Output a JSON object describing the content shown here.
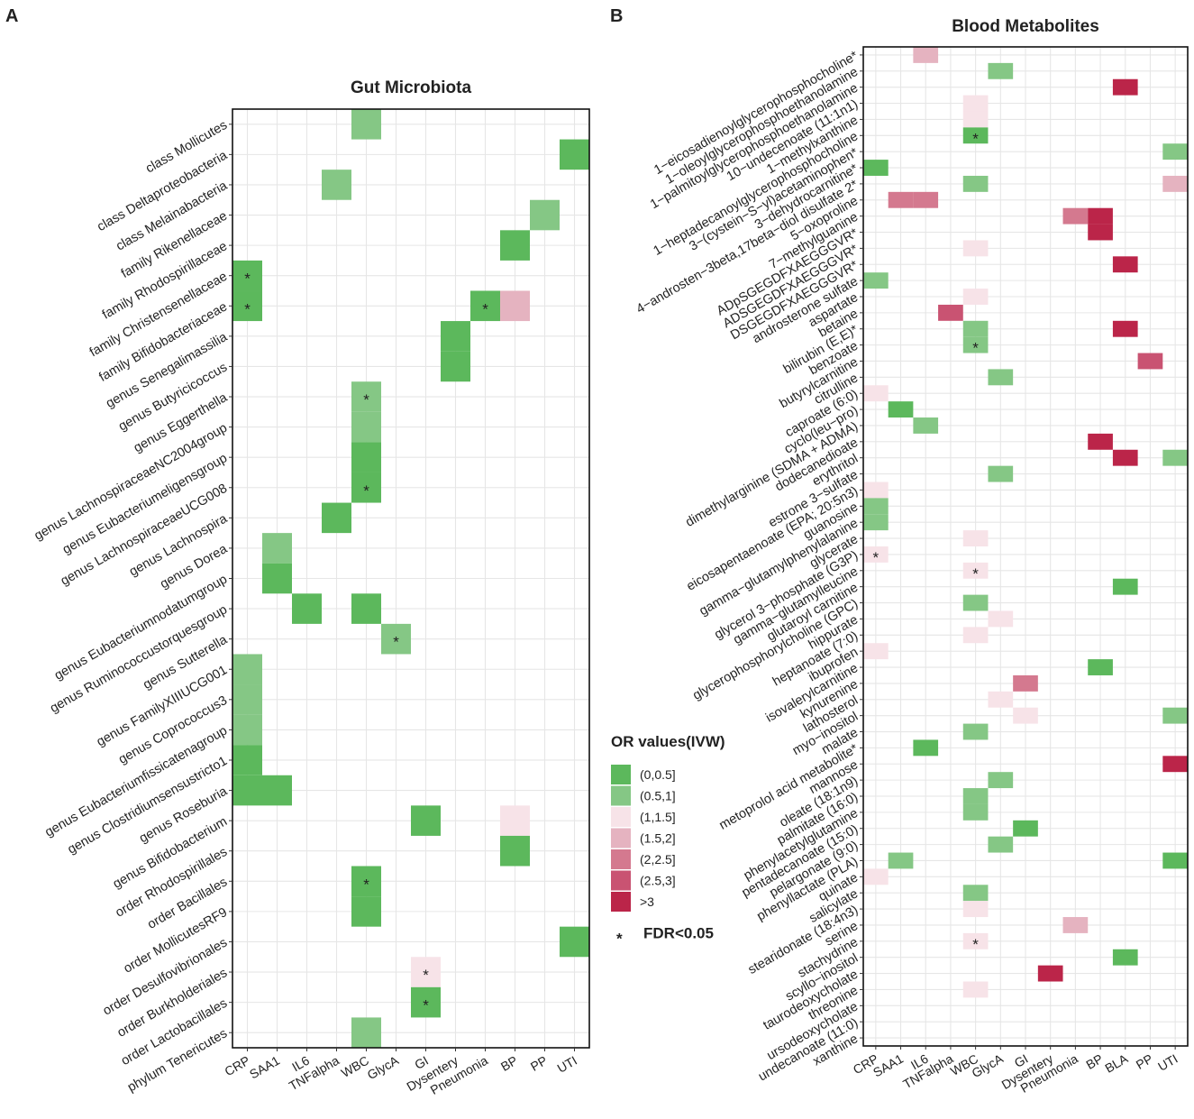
{
  "legend": {
    "title": "OR values(IVW)",
    "note": "FDR<0.05",
    "star": "*",
    "bins": [
      {
        "label": "(0,0.5]",
        "color": "#5cb85c"
      },
      {
        "label": "(0.5,1]",
        "color": "#85c785"
      },
      {
        "label": "(1,1.5]",
        "color": "#f7e3e8"
      },
      {
        "label": "(1.5,2]",
        "color": "#e5b3c0"
      },
      {
        "label": "(2,2.5]",
        "color": "#d4798f"
      },
      {
        "label": "(2.5,3]",
        "color": "#c95372"
      },
      {
        "label": ">3",
        "color": "#bb2549"
      }
    ]
  },
  "chart_data": [
    {
      "type": "heatmap",
      "panel": "A",
      "title": "Gut Microbiota",
      "columns": [
        "CRP",
        "SAA1",
        "IL6",
        "TNFalpha",
        "WBC",
        "GlycA",
        "GI",
        "Dysentery",
        "Pneumonia",
        "BP",
        "PP",
        "UTI"
      ],
      "rows": [
        "class Mollicutes",
        "class Deltaproteobacteria",
        "class Melainabacteria",
        "family Rikenellaceae",
        "family Rhodospirillaceae",
        "family Christensenellaceae",
        "family Bifidobacteriaceae",
        "genus Senegalimassilia",
        "genus Butyricicoccus",
        "genus Eggerthella",
        "genus LachnospiraceaeNC2004group",
        "genus Eubacteriumeligensgroup",
        "genus LachnospiraceaeUCG008",
        "genus Lachnospira",
        "genus Dorea",
        "genus Eubacteriumnodatumgroup",
        "genus Ruminococcustorquesgroup",
        "genus Sutterella",
        "genus FamilyXIIIUCG001",
        "genus Coprococcus3",
        "genus Eubacteriumfissicatenagroup",
        "genus Clostridiumsensustricto1",
        "genus Roseburia",
        "genus Bifidobacterium",
        "order Rhodospirillales",
        "order Bacillales",
        "order MollicutesRF9",
        "order Desulfovibrionales",
        "order Burkholderiales",
        "order Lactobacillales",
        "phylum Tenericutes"
      ],
      "cells": [
        {
          "row": 0,
          "col": 4,
          "bin": 1,
          "sig": false
        },
        {
          "row": 1,
          "col": 11,
          "bin": 0,
          "sig": false
        },
        {
          "row": 2,
          "col": 3,
          "bin": 1,
          "sig": false
        },
        {
          "row": 3,
          "col": 10,
          "bin": 1,
          "sig": false
        },
        {
          "row": 4,
          "col": 9,
          "bin": 0,
          "sig": false
        },
        {
          "row": 5,
          "col": 0,
          "bin": 0,
          "sig": true
        },
        {
          "row": 6,
          "col": 0,
          "bin": 0,
          "sig": true
        },
        {
          "row": 6,
          "col": 8,
          "bin": 0,
          "sig": true
        },
        {
          "row": 6,
          "col": 9,
          "bin": 3,
          "sig": false
        },
        {
          "row": 7,
          "col": 7,
          "bin": 0,
          "sig": false
        },
        {
          "row": 8,
          "col": 7,
          "bin": 0,
          "sig": false
        },
        {
          "row": 9,
          "col": 4,
          "bin": 1,
          "sig": true
        },
        {
          "row": 10,
          "col": 4,
          "bin": 1,
          "sig": false
        },
        {
          "row": 11,
          "col": 4,
          "bin": 0,
          "sig": false
        },
        {
          "row": 12,
          "col": 4,
          "bin": 0,
          "sig": true
        },
        {
          "row": 13,
          "col": 3,
          "bin": 0,
          "sig": false
        },
        {
          "row": 14,
          "col": 1,
          "bin": 1,
          "sig": false
        },
        {
          "row": 15,
          "col": 1,
          "bin": 0,
          "sig": false
        },
        {
          "row": 16,
          "col": 2,
          "bin": 0,
          "sig": false
        },
        {
          "row": 16,
          "col": 4,
          "bin": 0,
          "sig": false
        },
        {
          "row": 17,
          "col": 5,
          "bin": 1,
          "sig": true
        },
        {
          "row": 18,
          "col": 0,
          "bin": 1,
          "sig": false
        },
        {
          "row": 19,
          "col": 0,
          "bin": 1,
          "sig": false
        },
        {
          "row": 20,
          "col": 0,
          "bin": 1,
          "sig": false
        },
        {
          "row": 21,
          "col": 0,
          "bin": 0,
          "sig": false
        },
        {
          "row": 22,
          "col": 0,
          "bin": 0,
          "sig": false
        },
        {
          "row": 22,
          "col": 1,
          "bin": 0,
          "sig": false
        },
        {
          "row": 23,
          "col": 6,
          "bin": 0,
          "sig": false
        },
        {
          "row": 23,
          "col": 9,
          "bin": 2,
          "sig": false
        },
        {
          "row": 24,
          "col": 9,
          "bin": 0,
          "sig": false
        },
        {
          "row": 25,
          "col": 4,
          "bin": 0,
          "sig": true
        },
        {
          "row": 26,
          "col": 4,
          "bin": 0,
          "sig": false
        },
        {
          "row": 27,
          "col": 11,
          "bin": 0,
          "sig": false
        },
        {
          "row": 28,
          "col": 6,
          "bin": 2,
          "sig": true
        },
        {
          "row": 29,
          "col": 6,
          "bin": 0,
          "sig": true
        },
        {
          "row": 30,
          "col": 4,
          "bin": 1,
          "sig": false
        }
      ]
    },
    {
      "type": "heatmap",
      "panel": "B",
      "title": "Blood Metabolites",
      "columns": [
        "CRP",
        "SAA1",
        "IL6",
        "TNFalpha",
        "WBC",
        "GlycA",
        "GI",
        "Dysentery",
        "Pneumonia",
        "BP",
        "BLA",
        "PP",
        "UTI"
      ],
      "rows": [
        "1−eicosadienoylglycerophosphocholine*",
        "1−oleoylglycerophosphoethanolamine",
        "1−palmitoylglycerophosphoethanolamine",
        "10−undecenoate (11:1n1)",
        "1−methylxanthine",
        "1−heptadecanoylglycerophosphocholine",
        "3−(cystein−S−yl)acetaminophen*",
        "3−dehydrocarnitine*",
        "4−androsten−3beta,17beta−diol disulfate 2*",
        "5−oxoproline",
        "7−methylguanine",
        "ADpSGEGDFXAEGGGVR*",
        "ADSGEGDFXAEGGGVR*",
        "DSGEGDFXAEGGGVR*",
        "androsterone sulfate",
        "aspartate",
        "betaine",
        "bilirubin (E,E)*",
        "benzoate",
        "butyrylcarnitine",
        "citrulline",
        "caproate (6:0)",
        "cyclo(leu−pro)",
        "dimethylarginine (SDMA + ADMA)",
        "dodecanedioate",
        "erythritol",
        "estrone 3−sulfate",
        "eicosapentaenoate (EPA; 20:5n3)",
        "guanosine",
        "gamma−glutamylphenylalanine",
        "glycerate",
        "glycerol 3−phosphate (G3P)",
        "gamma−glutamylleucine",
        "glutaroyl carnitine",
        "glycerophosphorylcholine (GPC)",
        "hippurate",
        "heptanoate (7:0)",
        "ibuprofen",
        "isovalerylcarnitine",
        "kynurenine",
        "lathosterol",
        "myo−inositol",
        "malate",
        "metoprolol acid metabolite*",
        "mannose",
        "oleate (18:1n9)",
        "palmitate (16:0)",
        "phenylacetylglutamine",
        "pentadecanoate (15:0)",
        "pelargonate (9:0)",
        "phenyllactate (PLA)",
        "quinate",
        "salicylate",
        "stearidonate (18:4n3)",
        "serine",
        "stachydrine",
        "scyllo−inositol",
        "taurodeoxycholate",
        "threonine",
        "ursodeoxycholate",
        "undecanoate (11:0)",
        "xanthine"
      ],
      "cells": [
        {
          "row": 0,
          "col": 2,
          "bin": 3,
          "sig": false
        },
        {
          "row": 1,
          "col": 5,
          "bin": 1,
          "sig": false
        },
        {
          "row": 2,
          "col": 10,
          "bin": 6,
          "sig": false
        },
        {
          "row": 3,
          "col": 4,
          "bin": 2,
          "sig": false
        },
        {
          "row": 4,
          "col": 4,
          "bin": 2,
          "sig": false
        },
        {
          "row": 5,
          "col": 4,
          "bin": 0,
          "sig": true
        },
        {
          "row": 6,
          "col": 12,
          "bin": 1,
          "sig": false
        },
        {
          "row": 7,
          "col": 0,
          "bin": 0,
          "sig": false
        },
        {
          "row": 8,
          "col": 4,
          "bin": 1,
          "sig": false
        },
        {
          "row": 8,
          "col": 12,
          "bin": 3,
          "sig": false
        },
        {
          "row": 9,
          "col": 1,
          "bin": 4,
          "sig": false
        },
        {
          "row": 9,
          "col": 2,
          "bin": 4,
          "sig": false
        },
        {
          "row": 10,
          "col": 8,
          "bin": 4,
          "sig": false
        },
        {
          "row": 10,
          "col": 9,
          "bin": 6,
          "sig": false
        },
        {
          "row": 11,
          "col": 9,
          "bin": 6,
          "sig": false
        },
        {
          "row": 12,
          "col": 4,
          "bin": 2,
          "sig": false
        },
        {
          "row": 13,
          "col": 10,
          "bin": 6,
          "sig": false
        },
        {
          "row": 14,
          "col": 0,
          "bin": 1,
          "sig": false
        },
        {
          "row": 15,
          "col": 4,
          "bin": 2,
          "sig": false
        },
        {
          "row": 16,
          "col": 3,
          "bin": 5,
          "sig": false
        },
        {
          "row": 17,
          "col": 4,
          "bin": 1,
          "sig": false
        },
        {
          "row": 17,
          "col": 10,
          "bin": 6,
          "sig": false
        },
        {
          "row": 18,
          "col": 4,
          "bin": 1,
          "sig": true
        },
        {
          "row": 19,
          "col": 11,
          "bin": 5,
          "sig": false
        },
        {
          "row": 20,
          "col": 5,
          "bin": 1,
          "sig": false
        },
        {
          "row": 21,
          "col": 0,
          "bin": 2,
          "sig": false
        },
        {
          "row": 22,
          "col": 1,
          "bin": 0,
          "sig": false
        },
        {
          "row": 23,
          "col": 2,
          "bin": 1,
          "sig": false
        },
        {
          "row": 24,
          "col": 9,
          "bin": 6,
          "sig": false
        },
        {
          "row": 25,
          "col": 10,
          "bin": 6,
          "sig": false
        },
        {
          "row": 25,
          "col": 12,
          "bin": 1,
          "sig": false
        },
        {
          "row": 26,
          "col": 5,
          "bin": 1,
          "sig": false
        },
        {
          "row": 27,
          "col": 0,
          "bin": 2,
          "sig": false
        },
        {
          "row": 28,
          "col": 0,
          "bin": 1,
          "sig": false
        },
        {
          "row": 29,
          "col": 0,
          "bin": 1,
          "sig": false
        },
        {
          "row": 30,
          "col": 4,
          "bin": 2,
          "sig": false
        },
        {
          "row": 31,
          "col": 0,
          "bin": 2,
          "sig": true
        },
        {
          "row": 32,
          "col": 4,
          "bin": 2,
          "sig": true
        },
        {
          "row": 33,
          "col": 10,
          "bin": 0,
          "sig": false
        },
        {
          "row": 34,
          "col": 4,
          "bin": 1,
          "sig": false
        },
        {
          "row": 35,
          "col": 5,
          "bin": 2,
          "sig": false
        },
        {
          "row": 36,
          "col": 4,
          "bin": 2,
          "sig": false
        },
        {
          "row": 37,
          "col": 0,
          "bin": 2,
          "sig": false
        },
        {
          "row": 38,
          "col": 9,
          "bin": 0,
          "sig": false
        },
        {
          "row": 39,
          "col": 6,
          "bin": 4,
          "sig": false
        },
        {
          "row": 40,
          "col": 5,
          "bin": 2,
          "sig": false
        },
        {
          "row": 41,
          "col": 6,
          "bin": 2,
          "sig": false
        },
        {
          "row": 41,
          "col": 12,
          "bin": 1,
          "sig": false
        },
        {
          "row": 42,
          "col": 4,
          "bin": 1,
          "sig": false
        },
        {
          "row": 43,
          "col": 2,
          "bin": 0,
          "sig": false
        },
        {
          "row": 44,
          "col": 12,
          "bin": 6,
          "sig": false
        },
        {
          "row": 45,
          "col": 5,
          "bin": 1,
          "sig": false
        },
        {
          "row": 46,
          "col": 4,
          "bin": 1,
          "sig": false
        },
        {
          "row": 47,
          "col": 4,
          "bin": 1,
          "sig": false
        },
        {
          "row": 48,
          "col": 6,
          "bin": 0,
          "sig": false
        },
        {
          "row": 49,
          "col": 5,
          "bin": 1,
          "sig": false
        },
        {
          "row": 50,
          "col": 1,
          "bin": 1,
          "sig": false
        },
        {
          "row": 50,
          "col": 12,
          "bin": 0,
          "sig": false
        },
        {
          "row": 51,
          "col": 0,
          "bin": 2,
          "sig": false
        },
        {
          "row": 52,
          "col": 4,
          "bin": 1,
          "sig": false
        },
        {
          "row": 53,
          "col": 4,
          "bin": 2,
          "sig": false
        },
        {
          "row": 54,
          "col": 8,
          "bin": 3,
          "sig": false
        },
        {
          "row": 55,
          "col": 4,
          "bin": 2,
          "sig": true
        },
        {
          "row": 56,
          "col": 10,
          "bin": 0,
          "sig": false
        },
        {
          "row": 57,
          "col": 7,
          "bin": 6,
          "sig": false
        },
        {
          "row": 58,
          "col": 4,
          "bin": 2,
          "sig": false
        }
      ]
    }
  ]
}
